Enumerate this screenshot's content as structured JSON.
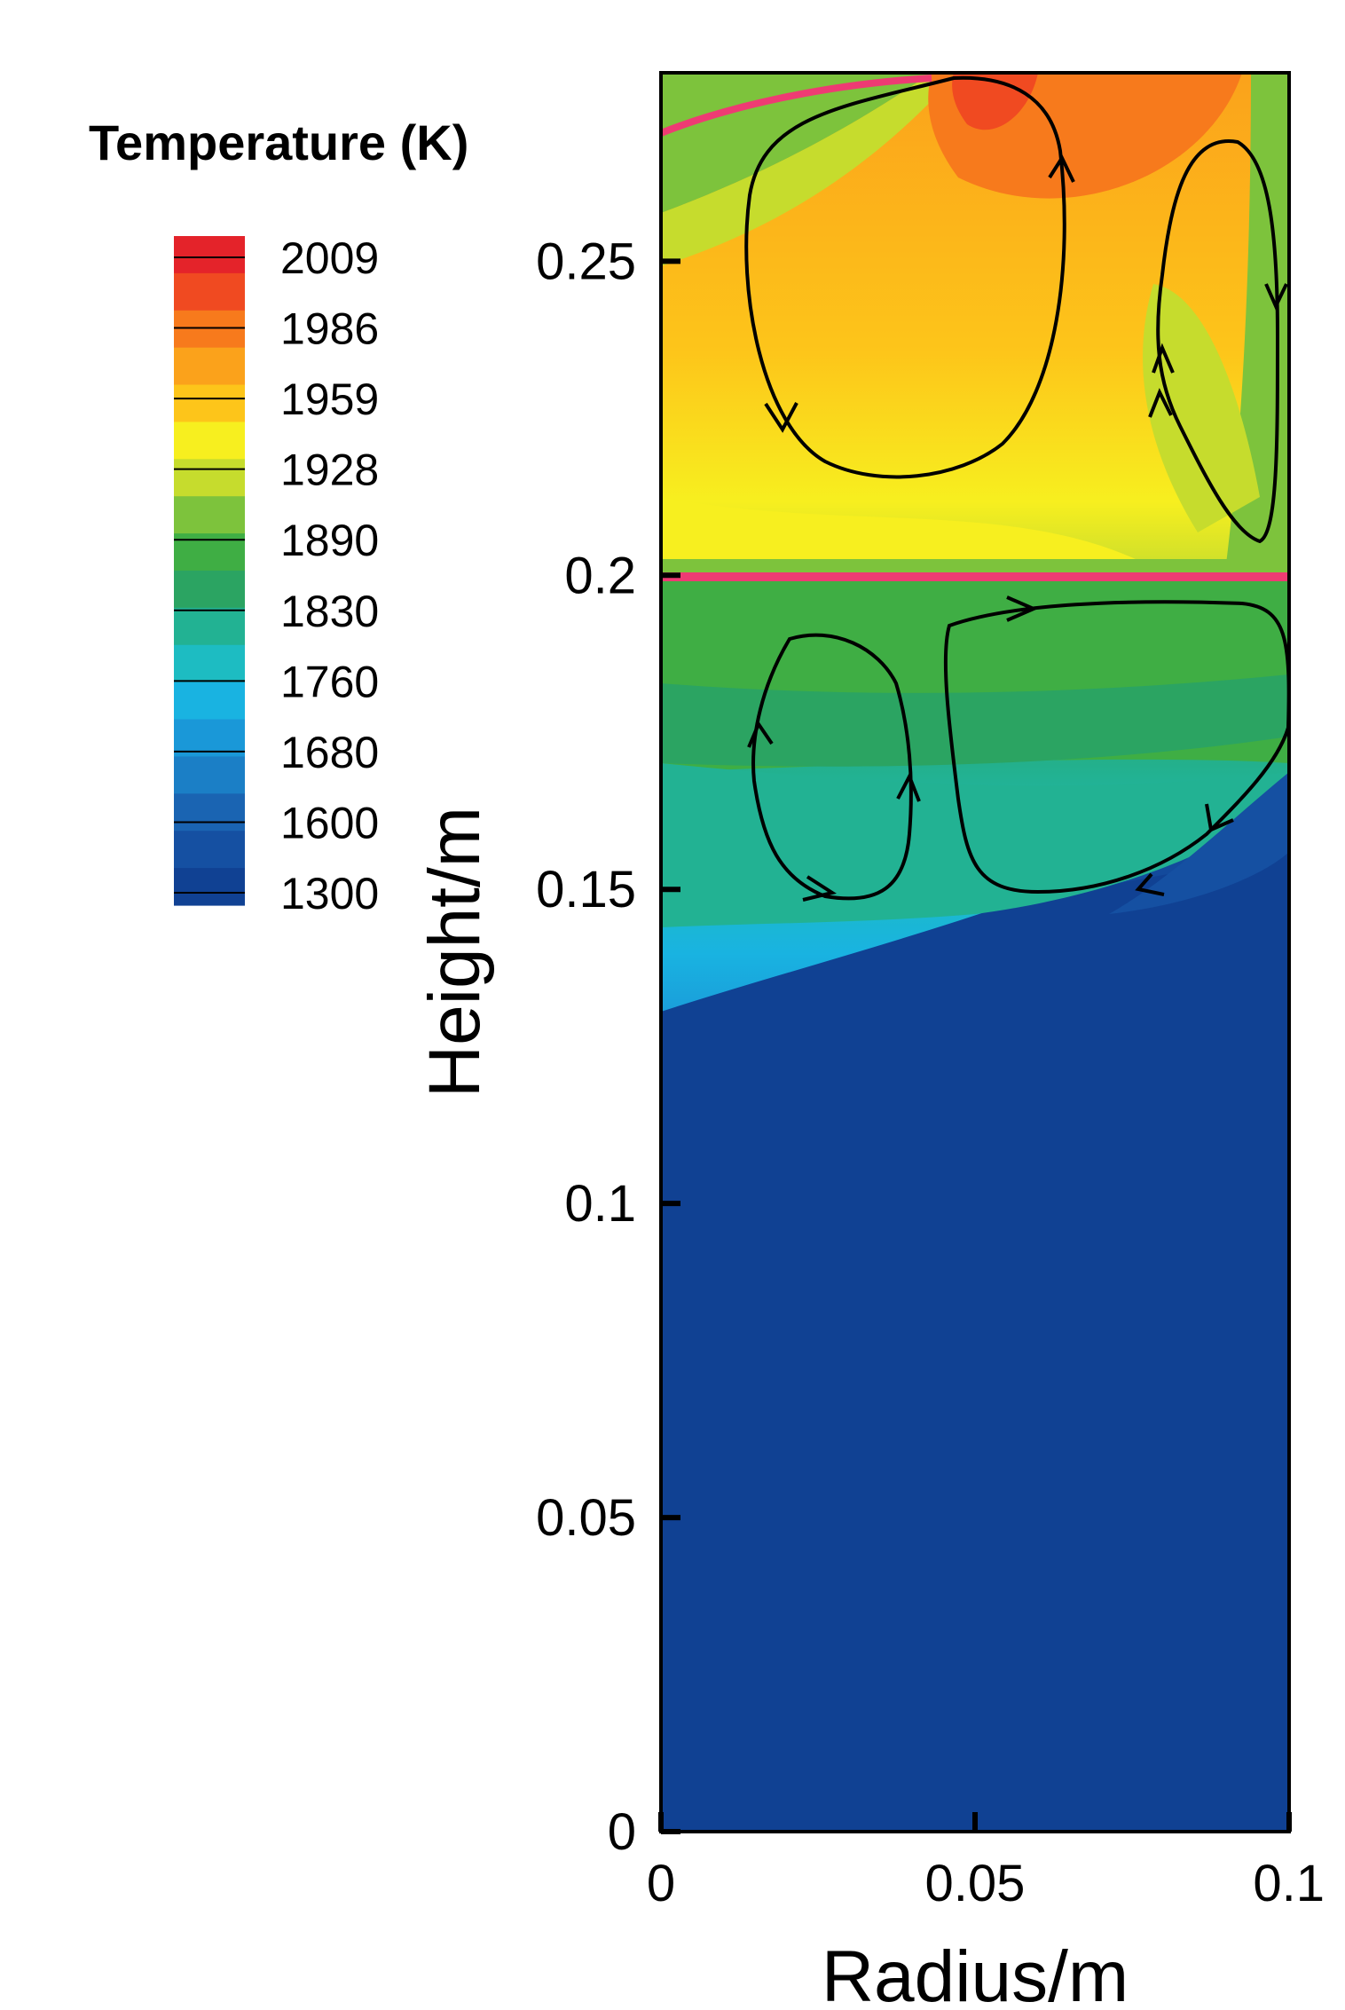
{
  "chart_data": {
    "type": "contour",
    "xlabel": "Radius/m",
    "ylabel": "Height/m",
    "xlim": [
      0,
      0.1
    ],
    "ylim": [
      0,
      0.28
    ],
    "xticks": [
      "0",
      "0.05",
      "0.1"
    ],
    "yticks": [
      "0",
      "0.05",
      "0.1",
      "0.15",
      "0.2",
      "0.25"
    ],
    "colorbar": {
      "title": "Temperature (K)",
      "levels": [
        "2009",
        "1986",
        "1959",
        "1928",
        "1890",
        "1830",
        "1760",
        "1680",
        "1600",
        "1300"
      ],
      "colors": [
        "#e4232a",
        "#f04a21",
        "#f77a1c",
        "#fba21b",
        "#fdc51a",
        "#f7ef1f",
        "#c6dc2d",
        "#7dc33c",
        "#3fae44",
        "#2ba462",
        "#22b293",
        "#1dbcc2",
        "#19b3e1",
        "#1a98d8",
        "#1b7fc6",
        "#1a64b2",
        "#1550a2",
        "#104193"
      ]
    },
    "interface_height": 0.2,
    "interface_color": "#ee3b73",
    "regions": [
      {
        "name": "upper",
        "y_range": [
          0.2,
          0.28
        ],
        "temperature_range": [
          1830,
          2009
        ]
      },
      {
        "name": "lower",
        "y_range": [
          0,
          0.2
        ],
        "temperature_range": [
          1300,
          1890
        ]
      }
    ]
  }
}
